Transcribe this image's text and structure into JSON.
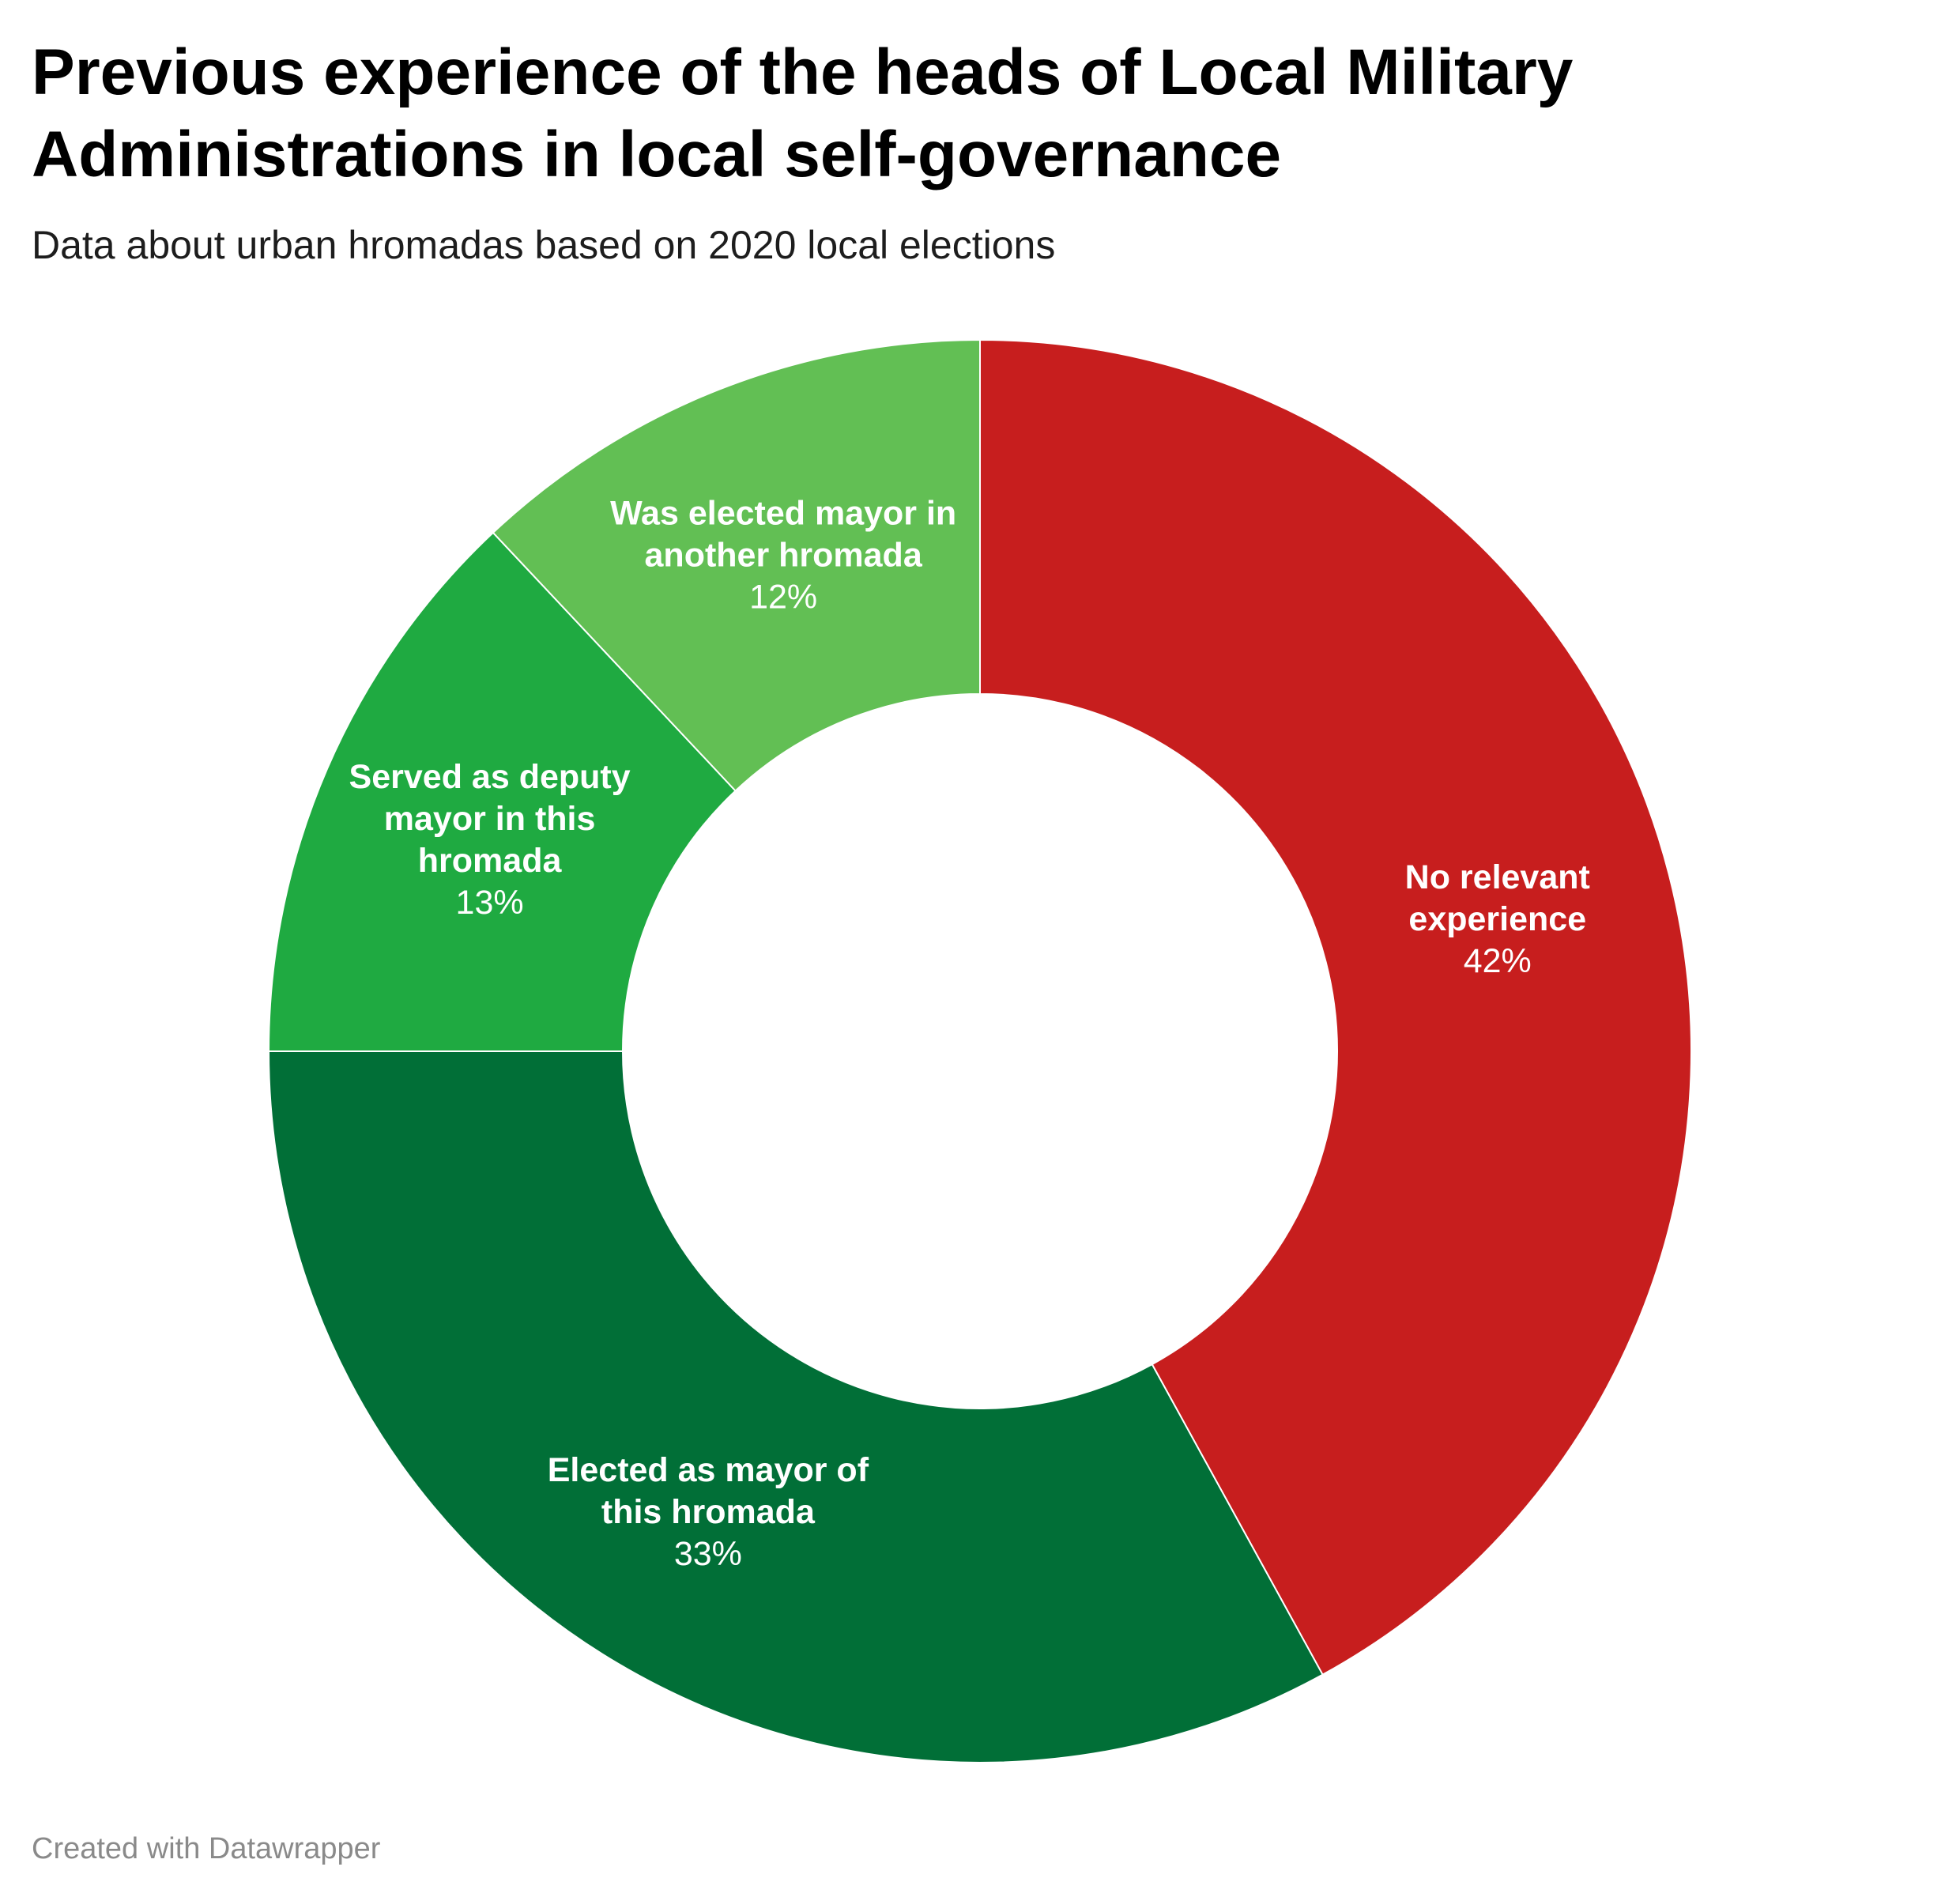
{
  "chart_data": {
    "type": "pie",
    "variant": "donut",
    "title": "Previous experience of the heads of Local Military Administrations in local self-governance",
    "subtitle": "Data about urban hromadas based on 2020 local elections",
    "slices": [
      {
        "label_lines": [
          "No relevant",
          "experience"
        ],
        "value": 42,
        "value_label": "42%",
        "color": "#c71e1e"
      },
      {
        "label_lines": [
          "Elected as mayor of",
          "this hromada"
        ],
        "value": 33,
        "value_label": "33%",
        "color": "#016f37"
      },
      {
        "label_lines": [
          "Served as deputy",
          "mayor in this",
          "hromada"
        ],
        "value": 13,
        "value_label": "13%",
        "color": "#1faa41"
      },
      {
        "label_lines": [
          "Was elected mayor in",
          "another hromada"
        ],
        "value": 12,
        "value_label": "12%",
        "color": "#62bf54"
      }
    ],
    "start_angle": "top",
    "direction": "clockwise",
    "legend": "none"
  },
  "footer": {
    "credit": "Created with Datawrapper"
  }
}
